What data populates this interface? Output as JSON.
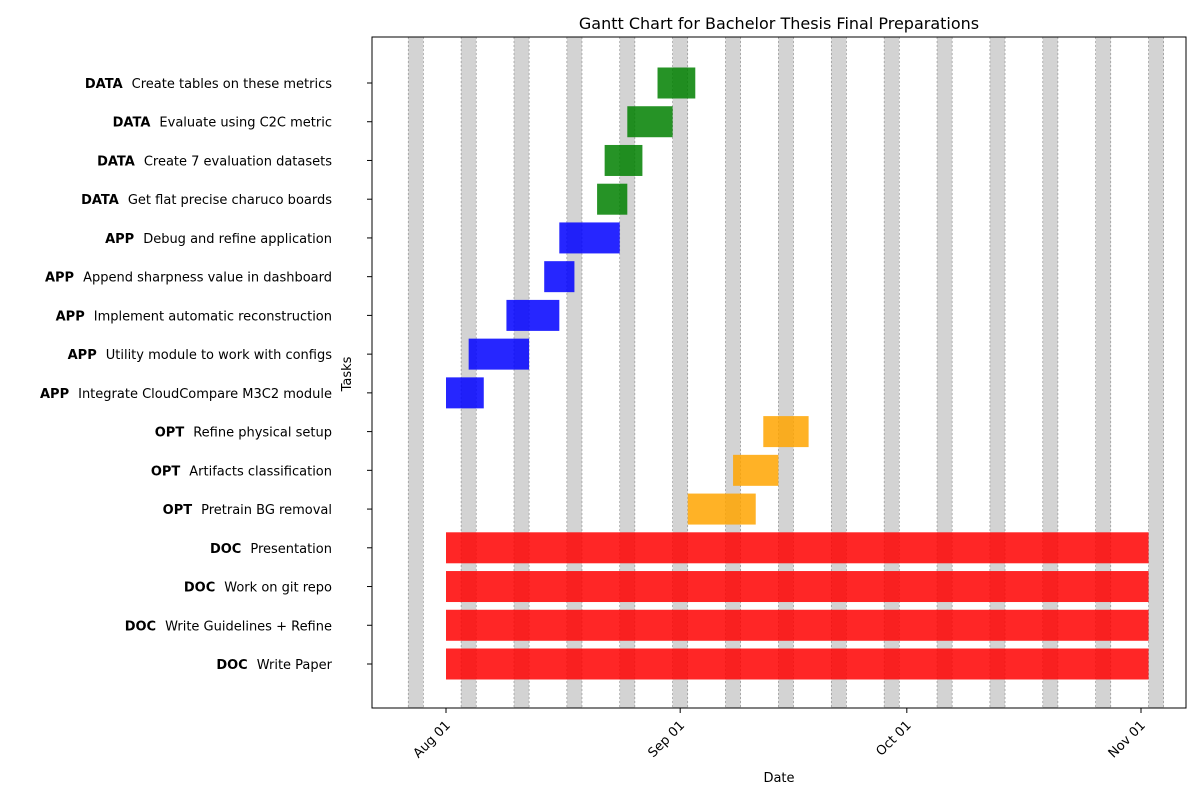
{
  "chart_data": {
    "type": "gantt",
    "title": "Gantt Chart for Bachelor Thesis Final Preparations",
    "xlabel": "Date",
    "ylabel": "Tasks",
    "x_ticks": [
      "Aug 01",
      "Sep 01",
      "Oct 01",
      "Nov 01"
    ],
    "x_range": [
      "2024-07-22",
      "2024-11-07"
    ],
    "weekend_shading": true,
    "category_colors": {
      "DATA": "#008000",
      "APP": "#0000ff",
      "OPT": "#ffa500",
      "DOC": "#ff0000"
    },
    "tasks": [
      {
        "category": "DATA",
        "name": "Create tables on these metrics",
        "start": "2024-08-29",
        "end": "2024-09-03"
      },
      {
        "category": "DATA",
        "name": "Evaluate using C2C metric",
        "start": "2024-08-25",
        "end": "2024-08-31"
      },
      {
        "category": "DATA",
        "name": "Create 7 evaluation datasets",
        "start": "2024-08-22",
        "end": "2024-08-27"
      },
      {
        "category": "DATA",
        "name": "Get flat precise charuco boards",
        "start": "2024-08-21",
        "end": "2024-08-25"
      },
      {
        "category": "APP",
        "name": "Debug and refine application",
        "start": "2024-08-16",
        "end": "2024-08-24"
      },
      {
        "category": "APP",
        "name": "Append sharpness value in dashboard",
        "start": "2024-08-14",
        "end": "2024-08-18"
      },
      {
        "category": "APP",
        "name": "Implement automatic reconstruction",
        "start": "2024-08-09",
        "end": "2024-08-16"
      },
      {
        "category": "APP",
        "name": "Utility module to work with configs",
        "start": "2024-08-04",
        "end": "2024-08-12"
      },
      {
        "category": "APP",
        "name": "Integrate CloudCompare M3C2 module",
        "start": "2024-08-01",
        "end": "2024-08-06"
      },
      {
        "category": "OPT",
        "name": "Refine physical setup",
        "start": "2024-09-12",
        "end": "2024-09-18"
      },
      {
        "category": "OPT",
        "name": "Artifacts classification",
        "start": "2024-09-08",
        "end": "2024-09-14"
      },
      {
        "category": "OPT",
        "name": "Pretrain BG removal",
        "start": "2024-09-02",
        "end": "2024-09-11"
      },
      {
        "category": "DOC",
        "name": "Presentation",
        "start": "2024-08-01",
        "end": "2024-11-02"
      },
      {
        "category": "DOC",
        "name": "Work on git repo",
        "start": "2024-08-01",
        "end": "2024-11-02"
      },
      {
        "category": "DOC",
        "name": "Write Guidelines + Refine",
        "start": "2024-08-01",
        "end": "2024-11-02"
      },
      {
        "category": "DOC",
        "name": "Write Paper",
        "start": "2024-08-01",
        "end": "2024-11-02"
      }
    ]
  }
}
